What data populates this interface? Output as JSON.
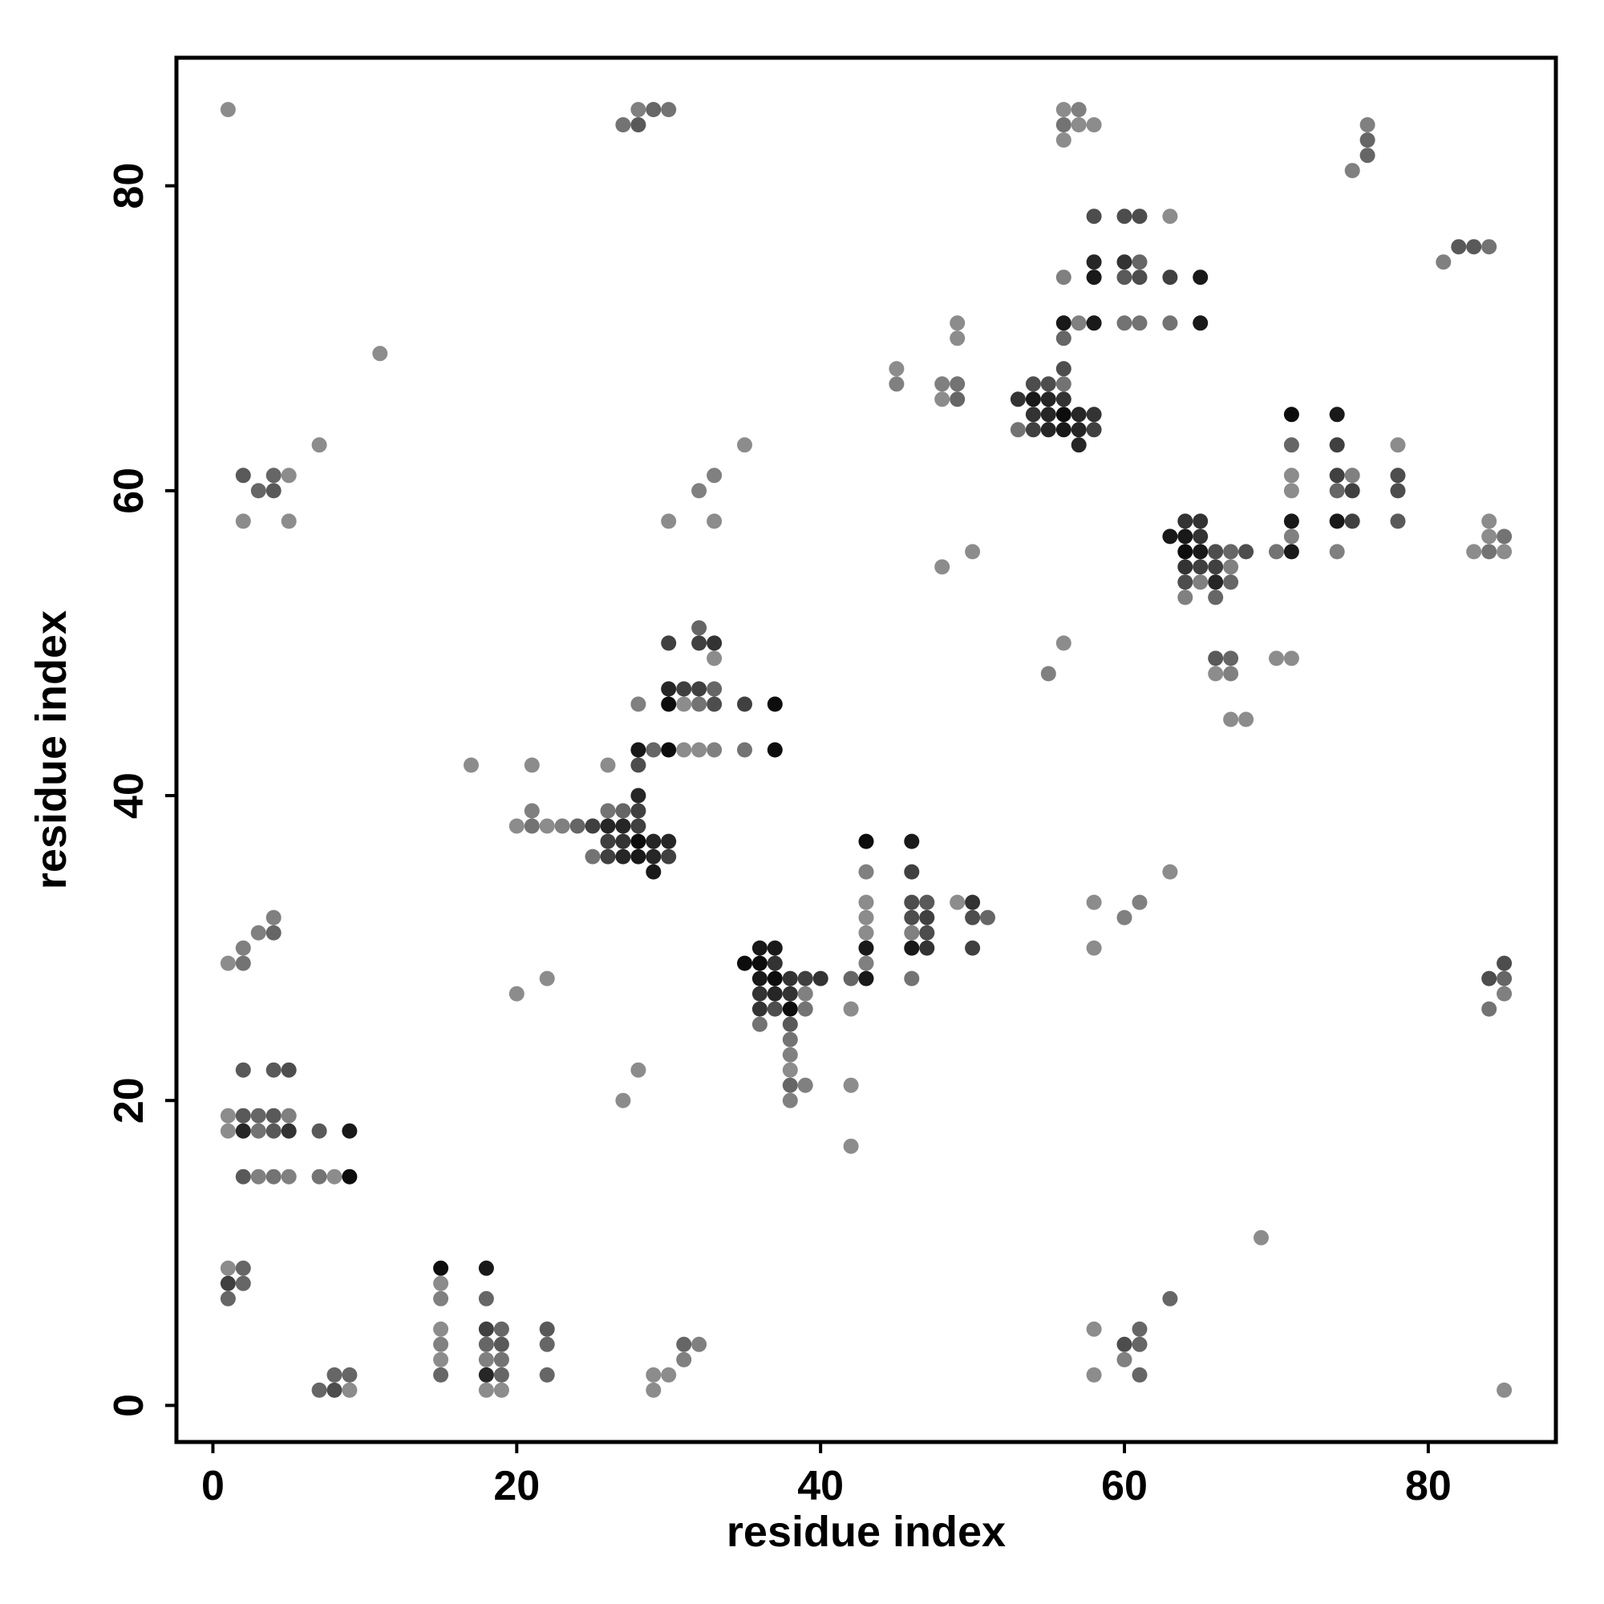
{
  "chart_data": {
    "type": "scatter",
    "title": "",
    "xlabel": "residue index",
    "ylabel": "residue index",
    "xlim": [
      -2.4,
      88.4
    ],
    "ylim": [
      -2.4,
      88.4
    ],
    "xticks": [
      0,
      20,
      40,
      60,
      80
    ],
    "yticks": [
      0,
      20,
      40,
      60,
      80
    ],
    "grid": false,
    "legend": "none",
    "marker_color": "#000000",
    "note_shade": "points drawn in grayscale; value = darkness 0.35 (light gray) to 0.95 (black)",
    "points": [
      [
        1,
        85,
        0.45
      ],
      [
        27,
        84,
        0.55
      ],
      [
        28,
        85,
        0.5
      ],
      [
        29,
        85,
        0.6
      ],
      [
        28,
        84,
        0.65
      ],
      [
        30,
        85,
        0.55
      ],
      [
        56,
        85,
        0.45
      ],
      [
        57,
        85,
        0.5
      ],
      [
        56,
        84,
        0.55
      ],
      [
        57,
        84,
        0.45
      ],
      [
        58,
        84,
        0.45
      ],
      [
        56,
        83,
        0.45
      ],
      [
        76,
        84,
        0.5
      ],
      [
        76,
        83,
        0.6
      ],
      [
        76,
        82,
        0.6
      ],
      [
        75,
        81,
        0.5
      ],
      [
        58,
        78,
        0.7
      ],
      [
        60,
        78,
        0.7
      ],
      [
        61,
        78,
        0.7
      ],
      [
        63,
        78,
        0.45
      ],
      [
        58,
        75,
        0.85
      ],
      [
        60,
        75,
        0.8
      ],
      [
        61,
        75,
        0.6
      ],
      [
        56,
        74,
        0.5
      ],
      [
        58,
        74,
        0.9
      ],
      [
        60,
        74,
        0.65
      ],
      [
        61,
        74,
        0.7
      ],
      [
        63,
        74,
        0.75
      ],
      [
        65,
        74,
        0.9
      ],
      [
        56,
        71,
        0.9
      ],
      [
        57,
        71,
        0.5
      ],
      [
        58,
        71,
        0.9
      ],
      [
        60,
        71,
        0.55
      ],
      [
        61,
        71,
        0.55
      ],
      [
        63,
        71,
        0.55
      ],
      [
        65,
        71,
        0.9
      ],
      [
        56,
        70,
        0.6
      ],
      [
        81,
        75,
        0.5
      ],
      [
        82,
        76,
        0.65
      ],
      [
        83,
        76,
        0.65
      ],
      [
        84,
        76,
        0.55
      ],
      [
        11,
        69,
        0.45
      ],
      [
        45,
        68,
        0.45
      ],
      [
        45,
        67,
        0.5
      ],
      [
        49,
        71,
        0.45
      ],
      [
        49,
        70,
        0.45
      ],
      [
        48,
        67,
        0.5
      ],
      [
        49,
        67,
        0.55
      ],
      [
        48,
        66,
        0.45
      ],
      [
        49,
        66,
        0.6
      ],
      [
        56,
        68,
        0.7
      ],
      [
        54,
        67,
        0.7
      ],
      [
        55,
        67,
        0.7
      ],
      [
        56,
        67,
        0.55
      ],
      [
        53,
        66,
        0.8
      ],
      [
        54,
        66,
        0.9
      ],
      [
        55,
        66,
        0.85
      ],
      [
        56,
        66,
        0.8
      ],
      [
        54,
        65,
        0.8
      ],
      [
        55,
        65,
        0.85
      ],
      [
        56,
        65,
        0.95
      ],
      [
        57,
        65,
        0.85
      ],
      [
        58,
        65,
        0.8
      ],
      [
        53,
        64,
        0.55
      ],
      [
        54,
        64,
        0.75
      ],
      [
        55,
        64,
        0.85
      ],
      [
        56,
        64,
        0.9
      ],
      [
        57,
        64,
        0.85
      ],
      [
        58,
        64,
        0.75
      ],
      [
        57,
        63,
        0.85
      ],
      [
        71,
        65,
        0.95
      ],
      [
        74,
        65,
        0.9
      ],
      [
        71,
        63,
        0.6
      ],
      [
        74,
        63,
        0.75
      ],
      [
        71,
        61,
        0.45
      ],
      [
        74,
        61,
        0.75
      ],
      [
        75,
        61,
        0.5
      ],
      [
        78,
        61,
        0.7
      ],
      [
        71,
        60,
        0.45
      ],
      [
        74,
        60,
        0.6
      ],
      [
        75,
        60,
        0.75
      ],
      [
        78,
        60,
        0.7
      ],
      [
        71,
        58,
        0.9
      ],
      [
        74,
        58,
        0.9
      ],
      [
        75,
        58,
        0.75
      ],
      [
        78,
        58,
        0.65
      ],
      [
        71,
        57,
        0.5
      ],
      [
        71,
        56,
        0.9
      ],
      [
        70,
        56,
        0.55
      ],
      [
        74,
        56,
        0.5
      ],
      [
        78,
        63,
        0.45
      ],
      [
        84,
        58,
        0.45
      ],
      [
        84,
        57,
        0.45
      ],
      [
        85,
        57,
        0.55
      ],
      [
        83,
        56,
        0.45
      ],
      [
        84,
        56,
        0.55
      ],
      [
        85,
        56,
        0.45
      ],
      [
        7,
        63,
        0.45
      ],
      [
        2,
        61,
        0.65
      ],
      [
        4,
        61,
        0.6
      ],
      [
        5,
        61,
        0.45
      ],
      [
        3,
        60,
        0.6
      ],
      [
        4,
        60,
        0.65
      ],
      [
        2,
        58,
        0.45
      ],
      [
        5,
        58,
        0.45
      ],
      [
        35,
        63,
        0.45
      ],
      [
        33,
        61,
        0.5
      ],
      [
        32,
        60,
        0.5
      ],
      [
        30,
        58,
        0.45
      ],
      [
        33,
        58,
        0.45
      ],
      [
        48,
        55,
        0.45
      ],
      [
        50,
        56,
        0.45
      ],
      [
        63,
        57,
        0.9
      ],
      [
        64,
        58,
        0.8
      ],
      [
        65,
        58,
        0.8
      ],
      [
        64,
        57,
        0.9
      ],
      [
        65,
        57,
        0.8
      ],
      [
        64,
        56,
        0.95
      ],
      [
        65,
        56,
        0.9
      ],
      [
        66,
        56,
        0.7
      ],
      [
        67,
        56,
        0.6
      ],
      [
        68,
        56,
        0.7
      ],
      [
        64,
        55,
        0.8
      ],
      [
        65,
        55,
        0.75
      ],
      [
        66,
        55,
        0.75
      ],
      [
        67,
        55,
        0.5
      ],
      [
        64,
        54,
        0.7
      ],
      [
        65,
        54,
        0.5
      ],
      [
        66,
        54,
        0.85
      ],
      [
        67,
        54,
        0.6
      ],
      [
        64,
        53,
        0.5
      ],
      [
        66,
        53,
        0.6
      ],
      [
        66,
        49,
        0.65
      ],
      [
        67,
        49,
        0.6
      ],
      [
        66,
        48,
        0.45
      ],
      [
        67,
        48,
        0.5
      ],
      [
        67,
        45,
        0.45
      ],
      [
        68,
        45,
        0.45
      ],
      [
        70,
        49,
        0.45
      ],
      [
        71,
        49,
        0.45
      ],
      [
        56,
        50,
        0.45
      ],
      [
        55,
        48,
        0.5
      ],
      [
        32,
        51,
        0.6
      ],
      [
        30,
        50,
        0.75
      ],
      [
        32,
        50,
        0.75
      ],
      [
        33,
        50,
        0.8
      ],
      [
        33,
        49,
        0.45
      ],
      [
        28,
        46,
        0.5
      ],
      [
        30,
        47,
        0.85
      ],
      [
        31,
        47,
        0.75
      ],
      [
        32,
        47,
        0.75
      ],
      [
        33,
        47,
        0.6
      ],
      [
        30,
        46,
        0.95
      ],
      [
        31,
        46,
        0.45
      ],
      [
        32,
        46,
        0.55
      ],
      [
        33,
        46,
        0.7
      ],
      [
        35,
        46,
        0.75
      ],
      [
        37,
        46,
        0.95
      ],
      [
        28,
        43,
        0.9
      ],
      [
        29,
        43,
        0.6
      ],
      [
        30,
        43,
        0.95
      ],
      [
        31,
        43,
        0.45
      ],
      [
        32,
        43,
        0.45
      ],
      [
        33,
        43,
        0.5
      ],
      [
        35,
        43,
        0.55
      ],
      [
        37,
        43,
        0.95
      ],
      [
        17,
        42,
        0.45
      ],
      [
        21,
        42,
        0.45
      ],
      [
        26,
        42,
        0.45
      ],
      [
        28,
        42,
        0.7
      ],
      [
        28,
        40,
        0.85
      ],
      [
        21,
        39,
        0.5
      ],
      [
        26,
        39,
        0.55
      ],
      [
        27,
        39,
        0.6
      ],
      [
        28,
        39,
        0.75
      ],
      [
        20,
        38,
        0.45
      ],
      [
        21,
        38,
        0.55
      ],
      [
        22,
        38,
        0.45
      ],
      [
        23,
        38,
        0.5
      ],
      [
        24,
        38,
        0.6
      ],
      [
        25,
        38,
        0.75
      ],
      [
        26,
        38,
        0.85
      ],
      [
        27,
        38,
        0.85
      ],
      [
        28,
        38,
        0.75
      ],
      [
        26,
        37,
        0.75
      ],
      [
        27,
        37,
        0.8
      ],
      [
        28,
        37,
        0.95
      ],
      [
        29,
        37,
        0.85
      ],
      [
        30,
        37,
        0.85
      ],
      [
        25,
        36,
        0.55
      ],
      [
        26,
        36,
        0.75
      ],
      [
        27,
        36,
        0.85
      ],
      [
        28,
        36,
        0.9
      ],
      [
        29,
        36,
        0.85
      ],
      [
        30,
        36,
        0.75
      ],
      [
        29,
        35,
        0.9
      ],
      [
        43,
        37,
        0.95
      ],
      [
        46,
        37,
        0.9
      ],
      [
        43,
        35,
        0.5
      ],
      [
        46,
        35,
        0.75
      ],
      [
        43,
        33,
        0.45
      ],
      [
        46,
        33,
        0.7
      ],
      [
        47,
        33,
        0.65
      ],
      [
        49,
        33,
        0.45
      ],
      [
        50,
        33,
        0.8
      ],
      [
        43,
        32,
        0.45
      ],
      [
        46,
        32,
        0.7
      ],
      [
        47,
        32,
        0.75
      ],
      [
        50,
        32,
        0.7
      ],
      [
        51,
        32,
        0.6
      ],
      [
        43,
        31,
        0.45
      ],
      [
        46,
        31,
        0.5
      ],
      [
        47,
        31,
        0.7
      ],
      [
        43,
        30,
        0.9
      ],
      [
        46,
        30,
        0.9
      ],
      [
        47,
        30,
        0.8
      ],
      [
        50,
        30,
        0.75
      ],
      [
        43,
        29,
        0.5
      ],
      [
        42,
        28,
        0.6
      ],
      [
        43,
        28,
        0.9
      ],
      [
        46,
        28,
        0.55
      ],
      [
        42,
        26,
        0.45
      ],
      [
        58,
        33,
        0.45
      ],
      [
        61,
        33,
        0.5
      ],
      [
        60,
        32,
        0.5
      ],
      [
        58,
        30,
        0.45
      ],
      [
        63,
        35,
        0.45
      ],
      [
        1,
        29,
        0.45
      ],
      [
        2,
        29,
        0.55
      ],
      [
        2,
        30,
        0.5
      ],
      [
        3,
        31,
        0.5
      ],
      [
        4,
        31,
        0.6
      ],
      [
        4,
        32,
        0.5
      ],
      [
        36,
        30,
        0.9
      ],
      [
        37,
        30,
        0.9
      ],
      [
        35,
        29,
        0.95
      ],
      [
        36,
        29,
        0.95
      ],
      [
        37,
        29,
        0.8
      ],
      [
        36,
        28,
        0.9
      ],
      [
        37,
        28,
        0.95
      ],
      [
        38,
        28,
        0.8
      ],
      [
        39,
        28,
        0.75
      ],
      [
        40,
        28,
        0.8
      ],
      [
        36,
        27,
        0.8
      ],
      [
        37,
        27,
        0.85
      ],
      [
        38,
        27,
        0.8
      ],
      [
        39,
        27,
        0.5
      ],
      [
        36,
        26,
        0.8
      ],
      [
        37,
        26,
        0.7
      ],
      [
        38,
        26,
        0.95
      ],
      [
        39,
        26,
        0.55
      ],
      [
        36,
        25,
        0.55
      ],
      [
        38,
        25,
        0.65
      ],
      [
        38,
        24,
        0.55
      ],
      [
        38,
        23,
        0.5
      ],
      [
        38,
        22,
        0.45
      ],
      [
        38,
        21,
        0.6
      ],
      [
        39,
        21,
        0.5
      ],
      [
        38,
        20,
        0.5
      ],
      [
        20,
        27,
        0.45
      ],
      [
        22,
        28,
        0.45
      ],
      [
        28,
        22,
        0.45
      ],
      [
        27,
        20,
        0.45
      ],
      [
        42,
        21,
        0.45
      ],
      [
        42,
        17,
        0.45
      ],
      [
        84,
        28,
        0.7
      ],
      [
        85,
        28,
        0.6
      ],
      [
        85,
        29,
        0.7
      ],
      [
        85,
        27,
        0.5
      ],
      [
        84,
        26,
        0.55
      ],
      [
        2,
        22,
        0.65
      ],
      [
        4,
        22,
        0.65
      ],
      [
        5,
        22,
        0.7
      ],
      [
        1,
        19,
        0.45
      ],
      [
        2,
        19,
        0.65
      ],
      [
        3,
        19,
        0.6
      ],
      [
        4,
        19,
        0.65
      ],
      [
        5,
        19,
        0.5
      ],
      [
        1,
        18,
        0.45
      ],
      [
        2,
        18,
        0.85
      ],
      [
        3,
        18,
        0.55
      ],
      [
        4,
        18,
        0.65
      ],
      [
        5,
        18,
        0.8
      ],
      [
        7,
        18,
        0.65
      ],
      [
        9,
        18,
        0.9
      ],
      [
        2,
        15,
        0.65
      ],
      [
        3,
        15,
        0.5
      ],
      [
        4,
        15,
        0.55
      ],
      [
        5,
        15,
        0.5
      ],
      [
        7,
        15,
        0.55
      ],
      [
        8,
        15,
        0.45
      ],
      [
        9,
        15,
        0.95
      ],
      [
        69,
        11,
        0.45
      ],
      [
        1,
        9,
        0.45
      ],
      [
        2,
        9,
        0.6
      ],
      [
        1,
        8,
        0.75
      ],
      [
        2,
        8,
        0.6
      ],
      [
        1,
        7,
        0.6
      ],
      [
        15,
        9,
        0.95
      ],
      [
        15,
        8,
        0.45
      ],
      [
        15,
        7,
        0.5
      ],
      [
        15,
        5,
        0.45
      ],
      [
        15,
        4,
        0.5
      ],
      [
        15,
        3,
        0.45
      ],
      [
        15,
        2,
        0.6
      ],
      [
        18,
        9,
        0.9
      ],
      [
        18,
        7,
        0.6
      ],
      [
        18,
        5,
        0.75
      ],
      [
        19,
        5,
        0.6
      ],
      [
        18,
        4,
        0.6
      ],
      [
        19,
        4,
        0.65
      ],
      [
        18,
        3,
        0.5
      ],
      [
        19,
        3,
        0.55
      ],
      [
        18,
        2,
        0.85
      ],
      [
        19,
        2,
        0.6
      ],
      [
        18,
        1,
        0.45
      ],
      [
        19,
        1,
        0.45
      ],
      [
        22,
        5,
        0.65
      ],
      [
        22,
        4,
        0.6
      ],
      [
        22,
        2,
        0.6
      ],
      [
        7,
        1,
        0.6
      ],
      [
        8,
        1,
        0.7
      ],
      [
        8,
        2,
        0.6
      ],
      [
        9,
        2,
        0.6
      ],
      [
        9,
        1,
        0.45
      ],
      [
        29,
        2,
        0.45
      ],
      [
        30,
        2,
        0.45
      ],
      [
        29,
        1,
        0.45
      ],
      [
        31,
        3,
        0.5
      ],
      [
        31,
        4,
        0.6
      ],
      [
        32,
        4,
        0.5
      ],
      [
        58,
        5,
        0.45
      ],
      [
        58,
        2,
        0.45
      ],
      [
        60,
        4,
        0.7
      ],
      [
        61,
        4,
        0.6
      ],
      [
        61,
        5,
        0.6
      ],
      [
        60,
        3,
        0.5
      ],
      [
        61,
        2,
        0.6
      ],
      [
        63,
        7,
        0.6
      ],
      [
        85,
        1,
        0.45
      ]
    ]
  }
}
